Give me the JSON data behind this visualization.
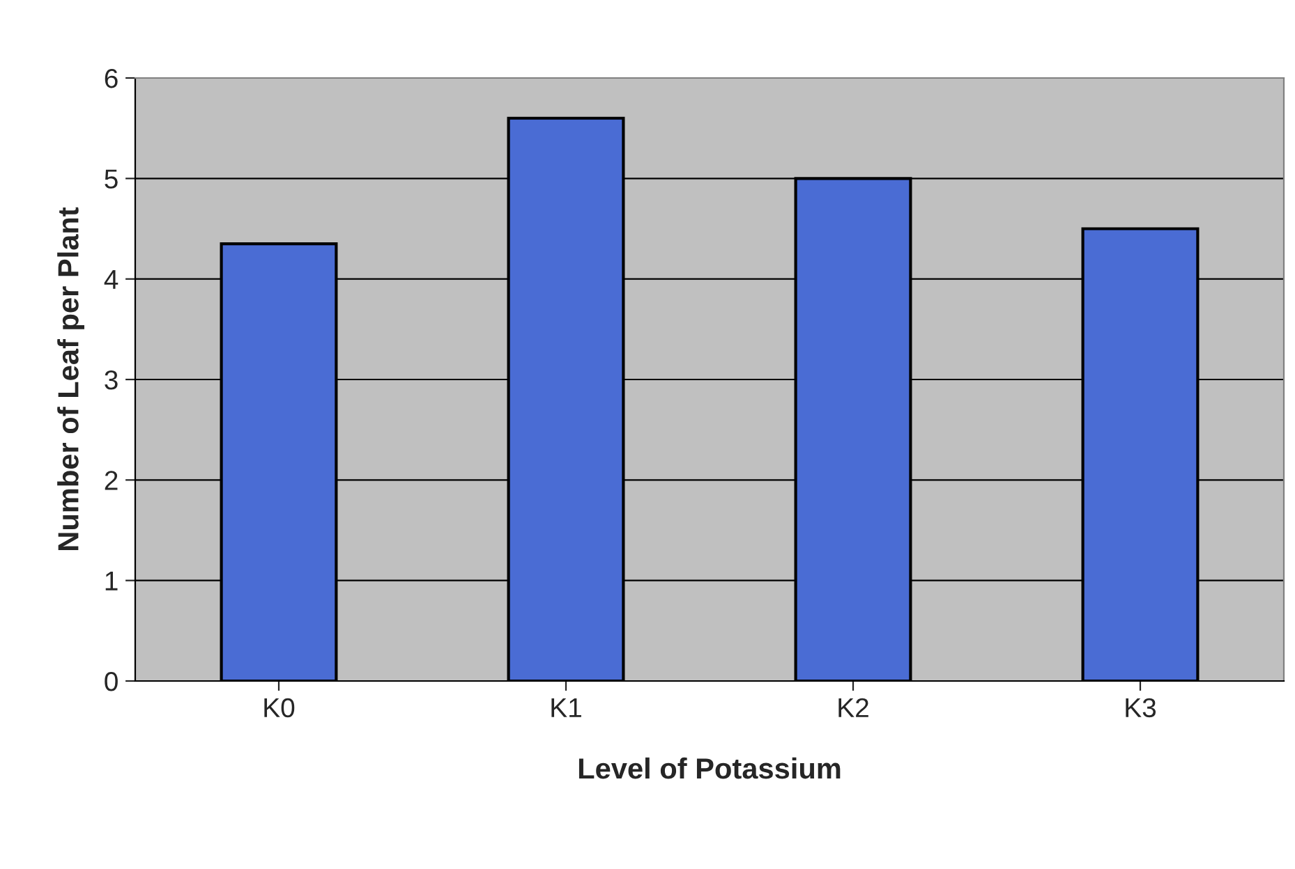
{
  "chart_data": {
    "type": "bar",
    "xlabel": "Level of Potassium",
    "ylabel": "Number of Leaf per Plant",
    "categories": [
      "K0",
      "K1",
      "K2",
      "K3"
    ],
    "values": [
      4.35,
      5.6,
      5.0,
      4.5
    ],
    "color": "#4a6cd4",
    "ylim": [
      0,
      6
    ],
    "yticks": [
      0,
      1,
      2,
      3,
      4,
      5,
      6
    ],
    "grid": "y",
    "legend": false
  }
}
